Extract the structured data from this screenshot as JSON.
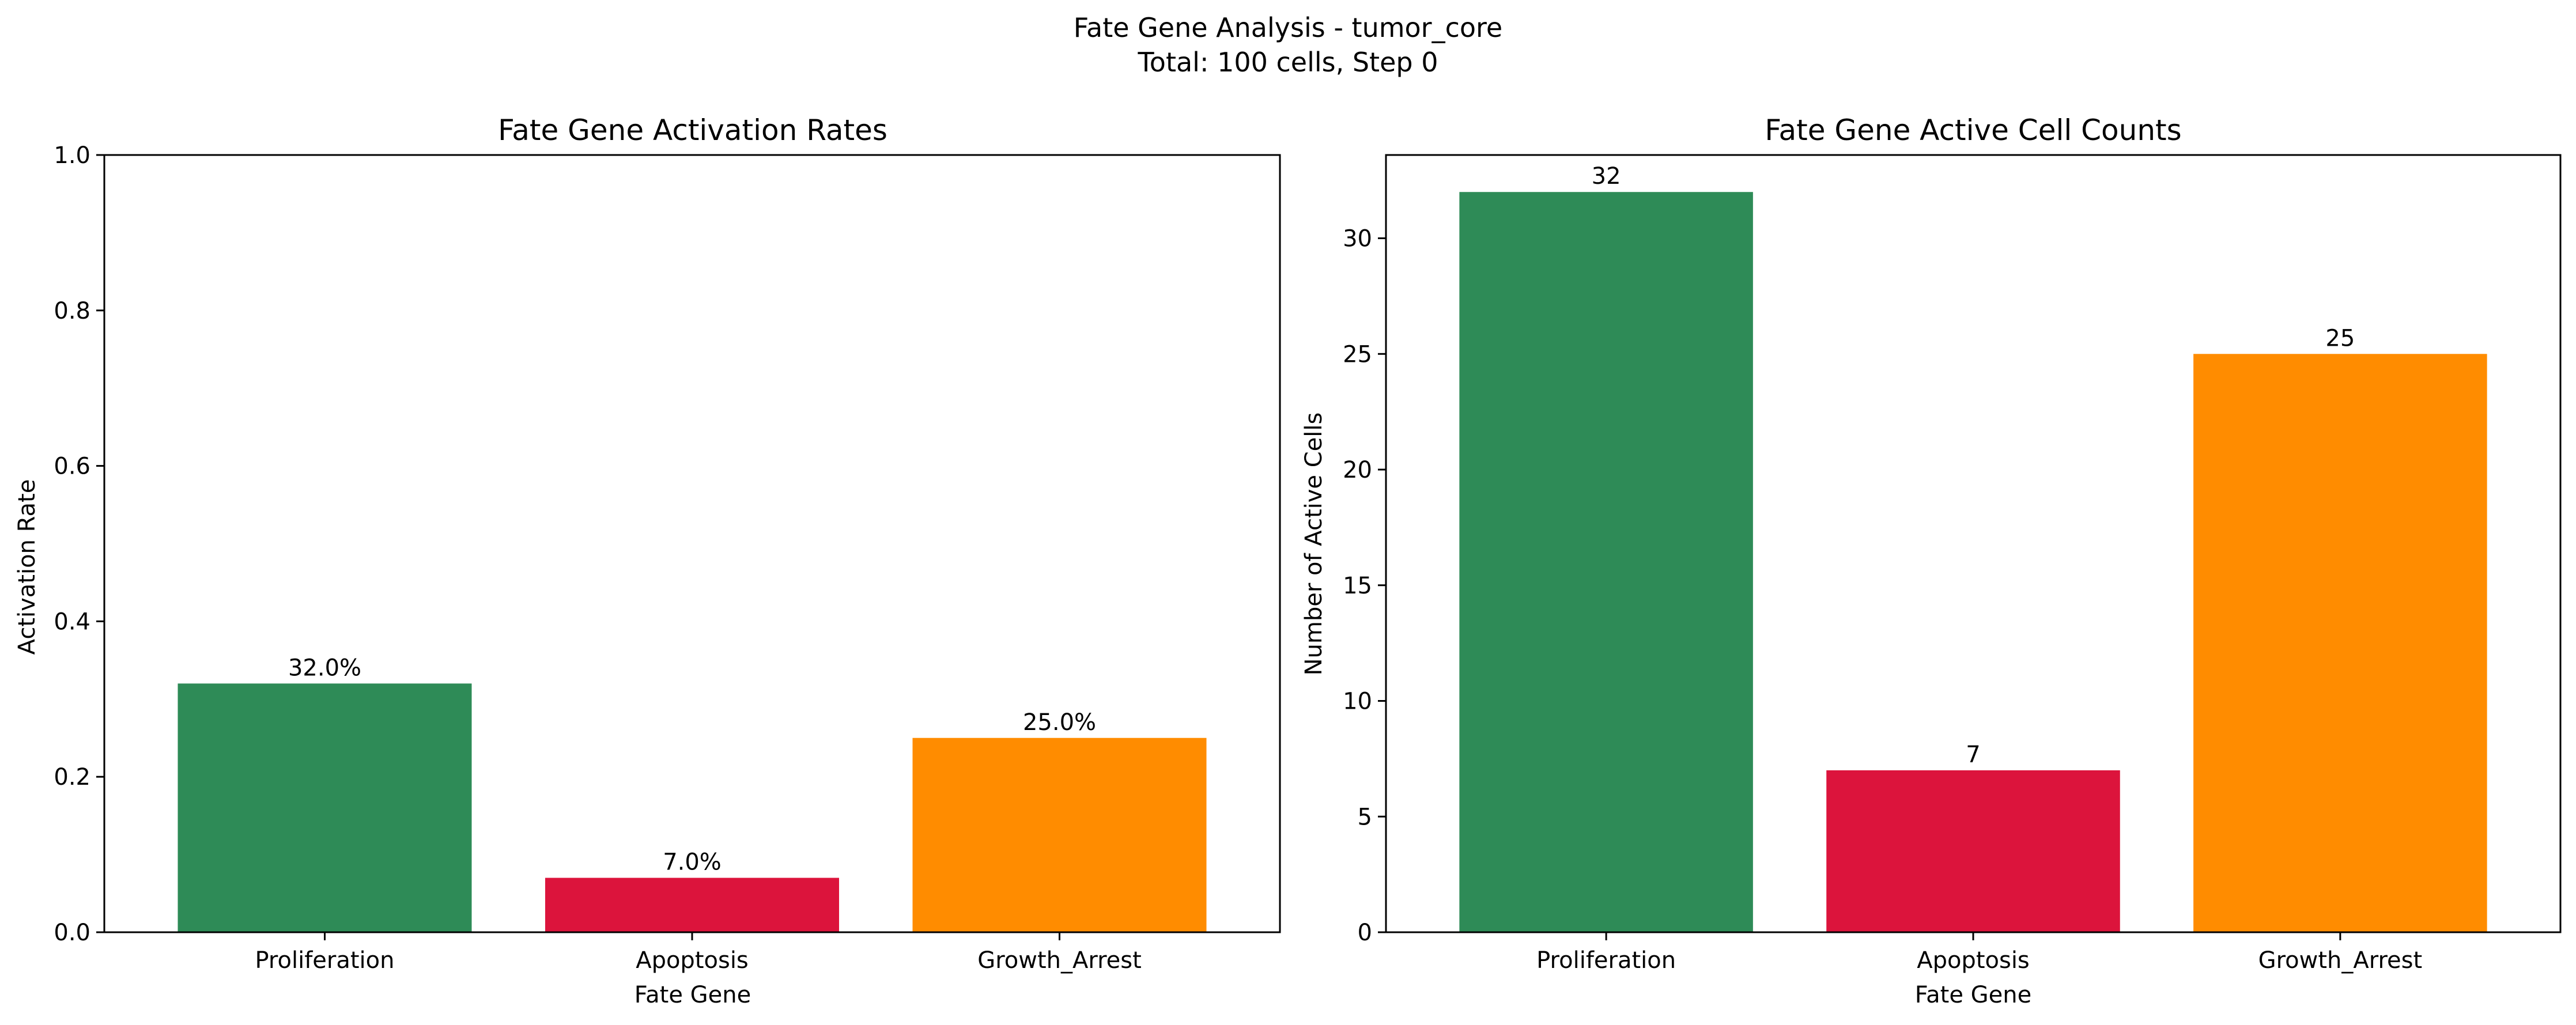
{
  "suptitle": {
    "line1": "Fate Gene Analysis - tumor_core",
    "line2": "Total: 100 cells, Step 0"
  },
  "colors": {
    "Proliferation": "#2e8b57",
    "Apoptosis": "#dc143c",
    "Growth_Arrest": "#ff8c00"
  },
  "chart_data": [
    {
      "type": "bar",
      "title": "Fate Gene Activation Rates",
      "xlabel": "Fate Gene",
      "ylabel": "Activation Rate",
      "categories": [
        "Proliferation",
        "Apoptosis",
        "Growth_Arrest"
      ],
      "values": [
        0.32,
        0.07,
        0.25
      ],
      "data_labels": [
        "32.0%",
        "7.0%",
        "25.0%"
      ],
      "ylim": [
        0,
        1.0
      ],
      "yticks": [
        0.0,
        0.2,
        0.4,
        0.6,
        0.8,
        1.0
      ],
      "ytick_labels": [
        "0.0",
        "0.2",
        "0.4",
        "0.6",
        "0.8",
        "1.0"
      ],
      "grid": false,
      "legend": "none"
    },
    {
      "type": "bar",
      "title": "Fate Gene Active Cell Counts",
      "xlabel": "Fate Gene",
      "ylabel": "Number of Active Cells",
      "categories": [
        "Proliferation",
        "Apoptosis",
        "Growth_Arrest"
      ],
      "values": [
        32,
        7,
        25
      ],
      "data_labels": [
        "32",
        "7",
        "25"
      ],
      "ylim": [
        0,
        33.6
      ],
      "yticks": [
        0,
        5,
        10,
        15,
        20,
        25,
        30
      ],
      "ytick_labels": [
        "0",
        "5",
        "10",
        "15",
        "20",
        "25",
        "30"
      ],
      "grid": false,
      "legend": "none"
    }
  ]
}
